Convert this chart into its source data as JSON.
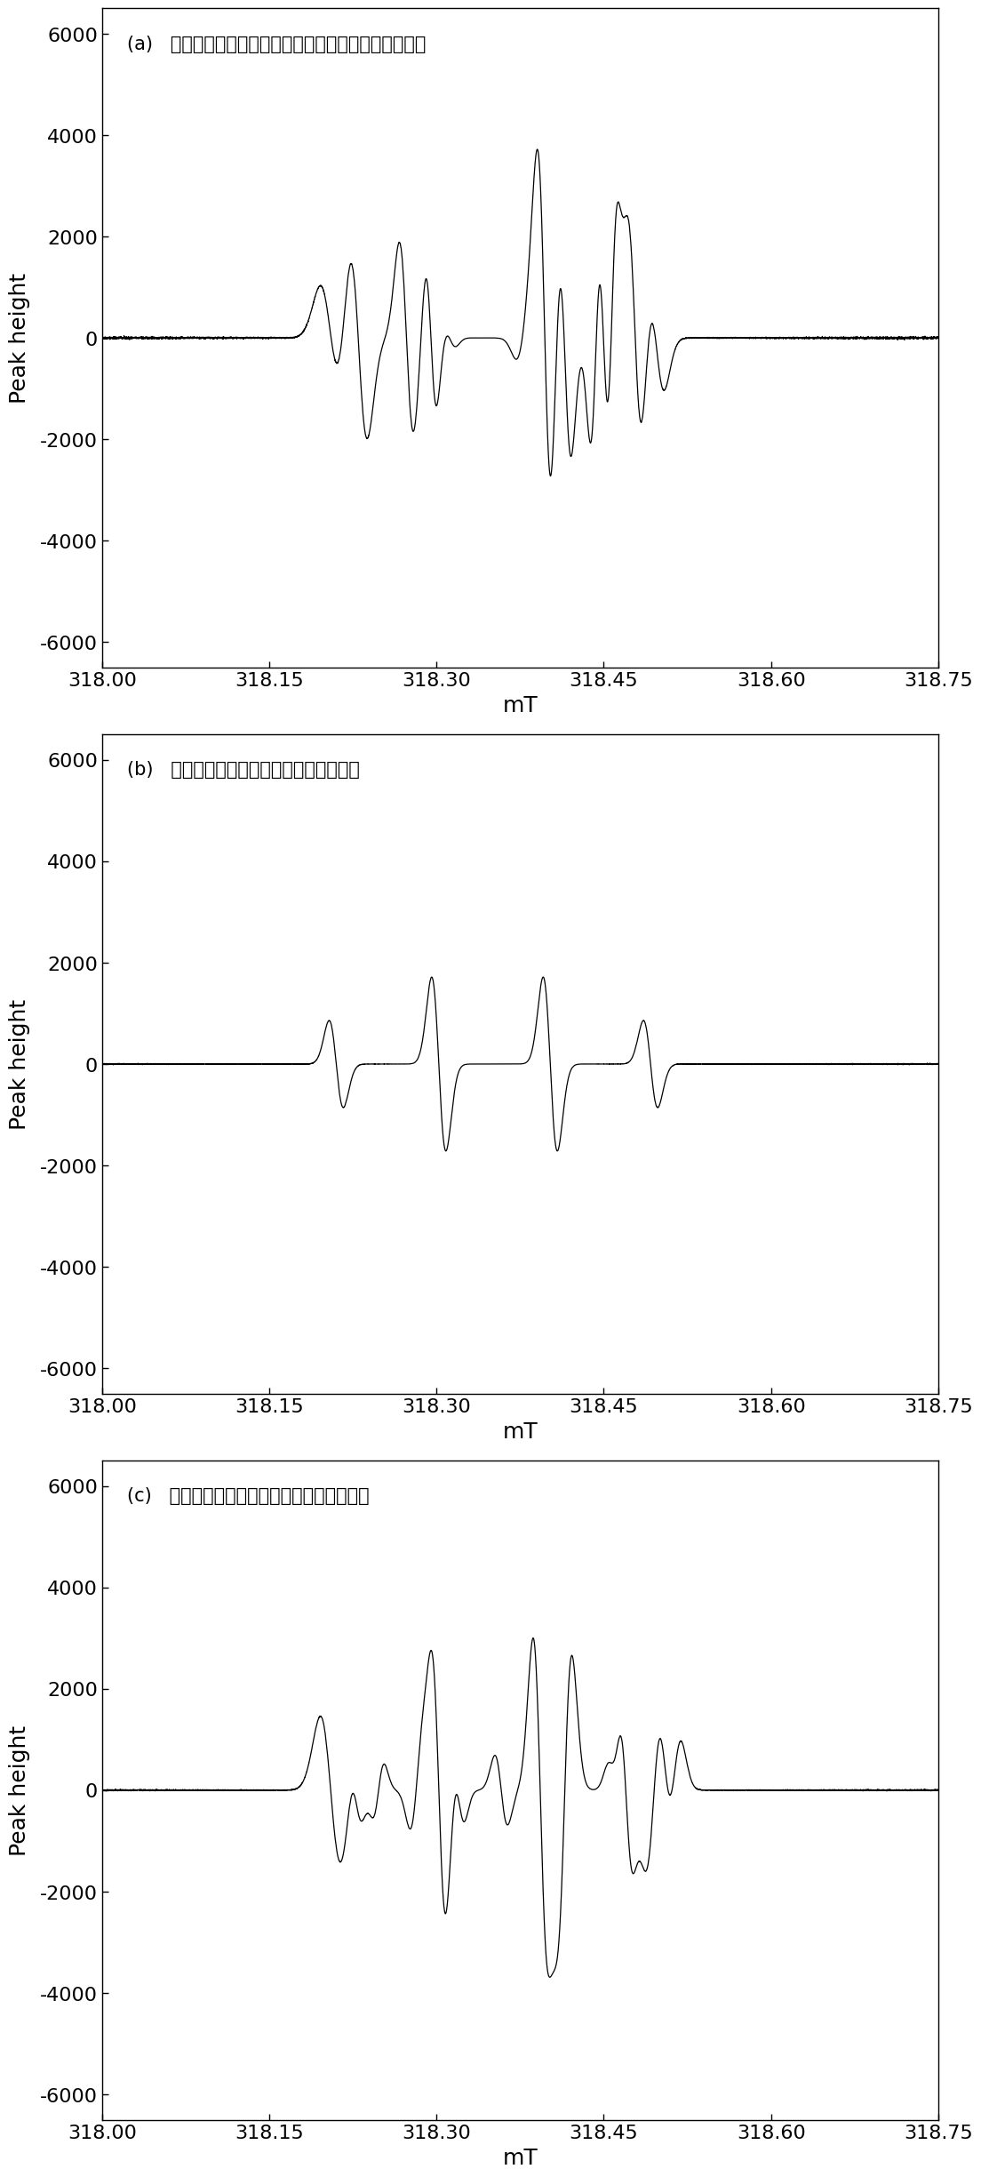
{
  "title_a": "(a)   微波激发可磁性分离催化剂催化过一硫酸氢钾复合盐",
  "title_b": "(b)   微波激发可磁性分离催化剂催化双氧水",
  "title_c": "(c)   微波激发可磁性分离催化剂催化过硫酸盐",
  "xlabel": "mT",
  "ylabel": "Peak height",
  "xlim": [
    318.0,
    318.75
  ],
  "ylim": [
    -6500,
    6500
  ],
  "yticks": [
    -6000,
    -4000,
    -2000,
    0,
    2000,
    4000,
    6000
  ],
  "xticks": [
    318.0,
    318.15,
    318.3,
    318.45,
    318.6,
    318.75
  ],
  "xtick_labels": [
    "318.00",
    "318.15",
    "318.30",
    "318.45",
    "318.60",
    "318.75"
  ],
  "line_color": "#000000",
  "bg_color": "#ffffff",
  "figsize": [
    11.18,
    24.63
  ],
  "dpi": 100
}
